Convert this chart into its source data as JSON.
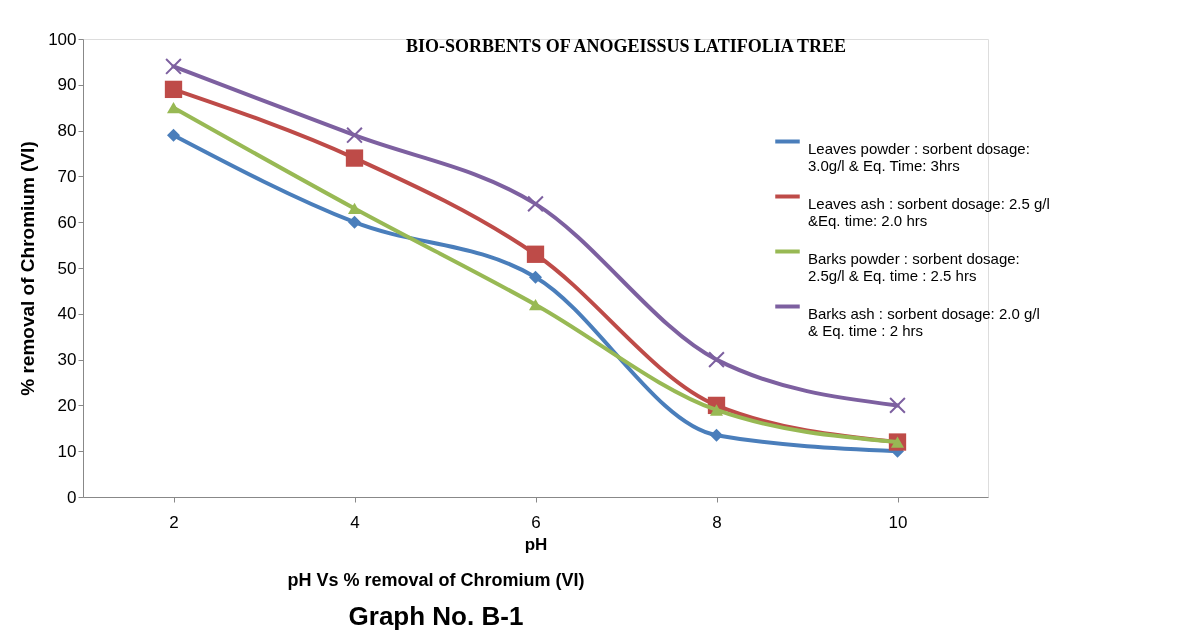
{
  "chart_data": {
    "type": "line",
    "title": "BIO-SORBENTS OF  ANOGEISSUS LATIFOLIA TREE",
    "xlabel": "pH",
    "ylabel": "% removal of Chromium (VI)",
    "annotations": [
      "pH Vs % removal of Chromium (VI)",
      "Graph No. B-1"
    ],
    "categories": [
      "2",
      "4",
      "6",
      "8",
      "10"
    ],
    "ylim": [
      0,
      100
    ],
    "yticks": [
      0,
      10,
      20,
      30,
      40,
      50,
      60,
      70,
      80,
      90,
      100
    ],
    "grid": false,
    "legend": "right",
    "line_style": "solid",
    "series": [
      {
        "name": "Leaves powder : sorbent dosage: 3.0g/l & Eq. Time: 3hrs",
        "color": "#4a7ebb",
        "marker": "diamond",
        "values": [
          79,
          60,
          48,
          13.5,
          10
        ]
      },
      {
        "name": "Leaves ash : sorbent dosage: 2.5 g/l &Eq. time: 2.0 hrs",
        "color": "#be4b48",
        "marker": "square",
        "values": [
          89,
          74,
          53,
          20,
          12
        ]
      },
      {
        "name": "Barks powder : sorbent dosage: 2.5g/l & Eq. time :  2.5 hrs",
        "color": "#98b954",
        "marker": "triangle",
        "values": [
          85,
          63,
          42,
          19,
          12
        ]
      },
      {
        "name": "Barks ash  : sorbent dosage: 2.0 g/l & Eq. time : 2 hrs",
        "color": "#7d60a0",
        "marker": "cross",
        "values": [
          94,
          79,
          64,
          30,
          20
        ]
      }
    ]
  }
}
